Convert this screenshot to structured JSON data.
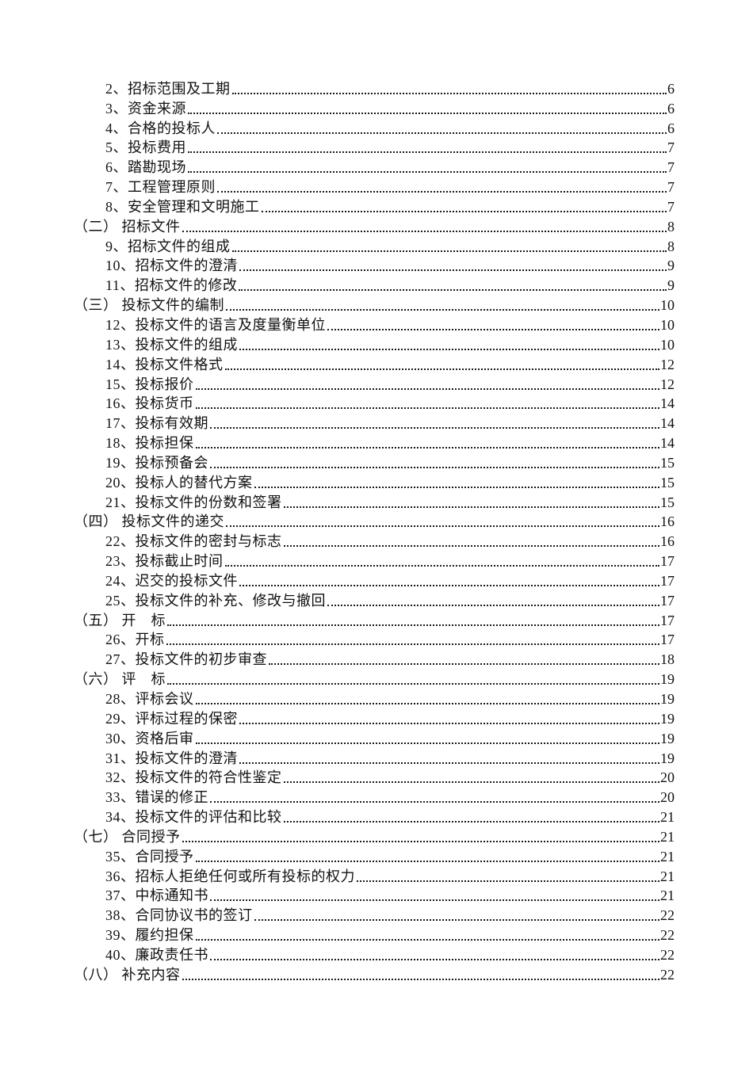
{
  "document": {
    "kind": "table-of-contents-page",
    "background_color": "#ffffff",
    "text_color": "#111111",
    "leader_style": "dotted"
  },
  "toc": {
    "entries": [
      {
        "level": "item",
        "label": "2、招标范围及工期",
        "page": "6"
      },
      {
        "level": "item",
        "label": "3、资金来源",
        "page": "6"
      },
      {
        "level": "item",
        "label": "4、合格的投标人",
        "page": "6"
      },
      {
        "level": "item",
        "label": "5、投标费用",
        "page": "7"
      },
      {
        "level": "item",
        "label": "6、踏勘现场",
        "page": "7"
      },
      {
        "level": "item",
        "label": "7、工程管理原则",
        "page": "7"
      },
      {
        "level": "item",
        "label": "8、安全管理和文明施工",
        "page": "7"
      },
      {
        "level": "section",
        "label": "（二） 招标文件",
        "page": "8"
      },
      {
        "level": "item",
        "label": "9、招标文件的组成",
        "page": "8"
      },
      {
        "level": "item",
        "label": "10、招标文件的澄清",
        "page": "9"
      },
      {
        "level": "item",
        "label": "11、招标文件的修改",
        "page": "9"
      },
      {
        "level": "section",
        "label": "（三） 投标文件的编制",
        "page": "10"
      },
      {
        "level": "item",
        "label": "12、投标文件的语言及度量衡单位",
        "page": "10"
      },
      {
        "level": "item",
        "label": "13、投标文件的组成",
        "page": "10"
      },
      {
        "level": "item",
        "label": "14、投标文件格式",
        "page": "12"
      },
      {
        "level": "item",
        "label": "15、投标报价",
        "page": "12"
      },
      {
        "level": "item",
        "label": "16、投标货币",
        "page": "14"
      },
      {
        "level": "item",
        "label": "17、投标有效期",
        "page": "14"
      },
      {
        "level": "item",
        "label": "18、投标担保",
        "page": "14"
      },
      {
        "level": "item",
        "label": "19、投标预备会",
        "page": "15"
      },
      {
        "level": "item",
        "label": "20、投标人的替代方案",
        "page": "15"
      },
      {
        "level": "item",
        "label": "21、投标文件的份数和签署",
        "page": "15"
      },
      {
        "level": "section",
        "label": "（四） 投标文件的递交",
        "page": "16"
      },
      {
        "level": "item",
        "label": "22、投标文件的密封与标志",
        "page": "16"
      },
      {
        "level": "item",
        "label": "23、投标截止时间",
        "page": "17"
      },
      {
        "level": "item",
        "label": "24、迟交的投标文件",
        "page": "17"
      },
      {
        "level": "item",
        "label": "25、投标文件的补充、修改与撤回",
        "page": "17"
      },
      {
        "level": "section",
        "label": "（五） 开　标",
        "page": "17"
      },
      {
        "level": "item",
        "label": "26、开标",
        "page": "17"
      },
      {
        "level": "item",
        "label": "27、投标文件的初步审查",
        "page": "18"
      },
      {
        "level": "section",
        "label": "（六） 评　标",
        "page": "19"
      },
      {
        "level": "item",
        "label": "28、评标会议",
        "page": "19"
      },
      {
        "level": "item",
        "label": "29、评标过程的保密",
        "page": "19"
      },
      {
        "level": "item",
        "label": "30、资格后审",
        "page": "19"
      },
      {
        "level": "item",
        "label": "31、投标文件的澄清",
        "page": "19"
      },
      {
        "level": "item",
        "label": "32、投标文件的符合性鉴定",
        "page": "20"
      },
      {
        "level": "item",
        "label": "33、错误的修正",
        "page": "20"
      },
      {
        "level": "item",
        "label": "34、投标文件的评估和比较",
        "page": "21"
      },
      {
        "level": "section",
        "label": "（七） 合同授予",
        "page": "21"
      },
      {
        "level": "item",
        "label": "35、合同授予",
        "page": "21"
      },
      {
        "level": "item",
        "label": "36、招标人拒绝任何或所有投标的权力",
        "page": "21"
      },
      {
        "level": "item",
        "label": "37、中标通知书",
        "page": "21"
      },
      {
        "level": "item",
        "label": "38、合同协议书的签订",
        "page": "22"
      },
      {
        "level": "item",
        "label": "39、履约担保",
        "page": "22"
      },
      {
        "level": "item",
        "label": "40、廉政责任书",
        "page": "22"
      },
      {
        "level": "section",
        "label": "（八） 补充内容",
        "page": "22"
      }
    ]
  }
}
